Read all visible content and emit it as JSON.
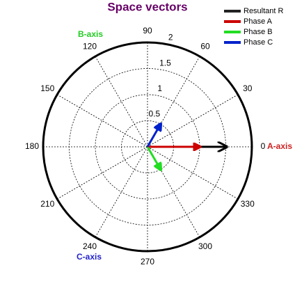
{
  "chart_data": {
    "type": "polar",
    "title": "Space vectors",
    "rlim": [
      0,
      2
    ],
    "rticks": [
      0.5,
      1,
      1.5,
      2
    ],
    "thetaticks": [
      0,
      30,
      60,
      90,
      120,
      150,
      180,
      210,
      240,
      270,
      300,
      330
    ],
    "grid": true,
    "series": [
      {
        "name": "Resultant R",
        "color": "#000000",
        "r": [
          1.5
        ],
        "theta": [
          0
        ]
      },
      {
        "name": "Phase A",
        "color": "#cc0000",
        "r": [
          1
        ],
        "theta": [
          0
        ]
      },
      {
        "name": "Phase B",
        "color": "#22dd22",
        "r": [
          0.5
        ],
        "theta": [
          300
        ]
      },
      {
        "name": "Phase C",
        "color": "#0022cc",
        "r": [
          0.5
        ],
        "theta": [
          60
        ]
      }
    ],
    "annotations": [
      {
        "text": "A-axis",
        "color": "#cc2222"
      },
      {
        "text": "B-axis",
        "color": "#22cc22"
      },
      {
        "text": "C-axis",
        "color": "#2222cc"
      }
    ]
  }
}
